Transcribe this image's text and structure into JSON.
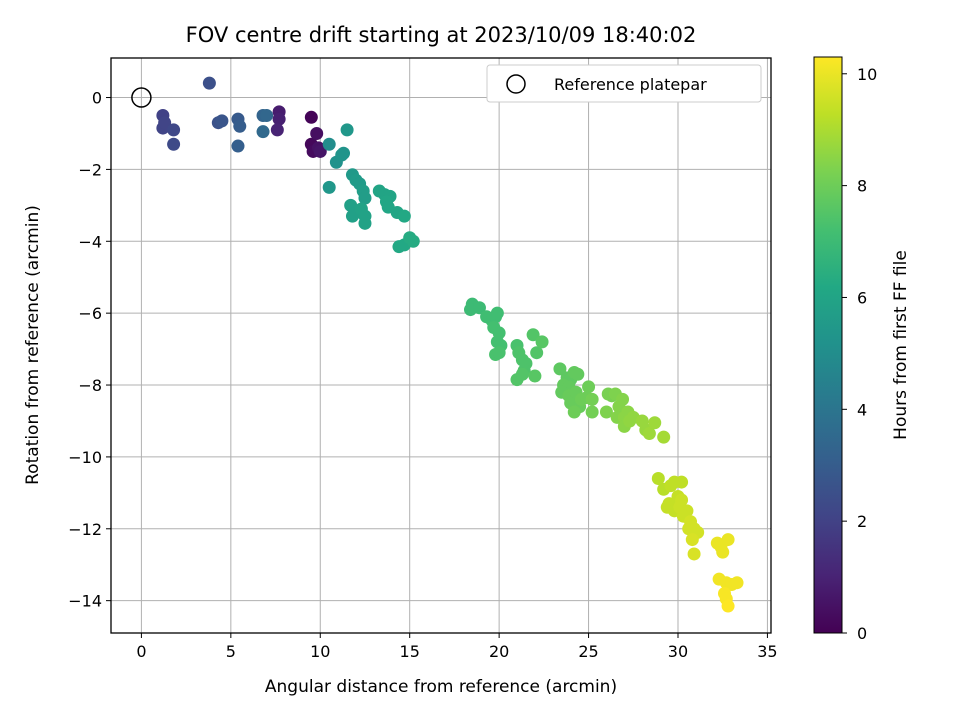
{
  "chart_data": {
    "type": "scatter",
    "title": "FOV centre drift starting at 2023/10/09 18:40:02",
    "xlabel": "Angular distance from reference (arcmin)",
    "ylabel": "Rotation from reference (arcmin)",
    "xlim": [
      -1.7,
      35.2
    ],
    "ylim": [
      -14.9,
      1.1
    ],
    "xticks": [
      0,
      5,
      10,
      15,
      20,
      25,
      30,
      35
    ],
    "yticks": [
      0,
      -2,
      -4,
      -6,
      -8,
      -10,
      -12,
      -14
    ],
    "grid": true,
    "legend": {
      "position": "top-right",
      "entries": [
        "Reference platepar"
      ]
    },
    "reference_point": {
      "x": 0,
      "y": 0,
      "label": "Reference platepar"
    },
    "colorbar": {
      "label": "Hours from first FF file",
      "colormap": "viridis",
      "range": [
        0,
        10.3
      ],
      "ticks": [
        0,
        2,
        4,
        6,
        8,
        10
      ]
    },
    "series": [
      {
        "points": [
          [
            9.5,
            -0.55,
            0.1
          ],
          [
            9.5,
            -1.3,
            0.2
          ],
          [
            9.6,
            -1.5,
            0.3
          ],
          [
            9.8,
            -1.0,
            0.4
          ],
          [
            9.9,
            -1.4,
            0.5
          ],
          [
            10.0,
            -1.5,
            0.6
          ],
          [
            7.7,
            -0.4,
            0.8
          ],
          [
            7.7,
            -0.6,
            0.9
          ],
          [
            7.6,
            -0.9,
            1.0
          ],
          [
            1.2,
            -0.5,
            2.0
          ],
          [
            1.2,
            -0.85,
            2.1
          ],
          [
            1.3,
            -0.7,
            2.1
          ],
          [
            1.8,
            -0.9,
            2.2
          ],
          [
            1.8,
            -1.3,
            2.3
          ],
          [
            3.8,
            0.4,
            2.5
          ],
          [
            4.3,
            -0.7,
            2.6
          ],
          [
            4.5,
            -0.65,
            2.7
          ],
          [
            5.4,
            -0.6,
            2.9
          ],
          [
            5.5,
            -0.8,
            3.0
          ],
          [
            5.4,
            -1.35,
            3.1
          ],
          [
            6.8,
            -0.5,
            3.3
          ],
          [
            7.0,
            -0.5,
            3.4
          ],
          [
            6.8,
            -0.95,
            3.5
          ],
          [
            10.5,
            -1.3,
            5.0
          ],
          [
            10.9,
            -1.8,
            5.2
          ],
          [
            11.3,
            -1.55,
            5.3
          ],
          [
            11.2,
            -1.6,
            5.3
          ],
          [
            11.5,
            -0.9,
            5.4
          ],
          [
            10.5,
            -2.5,
            5.4
          ],
          [
            11.8,
            -2.15,
            5.5
          ],
          [
            12.0,
            -2.3,
            5.6
          ],
          [
            12.2,
            -2.4,
            5.6
          ],
          [
            12.4,
            -2.6,
            5.7
          ],
          [
            12.5,
            -2.8,
            5.7
          ],
          [
            11.7,
            -3.0,
            5.8
          ],
          [
            11.8,
            -3.3,
            5.8
          ],
          [
            12.0,
            -3.2,
            5.8
          ],
          [
            12.3,
            -3.1,
            5.9
          ],
          [
            12.5,
            -3.3,
            5.9
          ],
          [
            12.5,
            -3.5,
            5.9
          ],
          [
            13.3,
            -2.6,
            6.0
          ],
          [
            13.6,
            -2.7,
            6.0
          ],
          [
            13.9,
            -2.75,
            6.0
          ],
          [
            13.7,
            -2.9,
            6.1
          ],
          [
            13.8,
            -3.05,
            6.1
          ],
          [
            14.3,
            -3.2,
            6.1
          ],
          [
            14.7,
            -3.3,
            6.2
          ],
          [
            14.4,
            -4.15,
            6.2
          ],
          [
            14.7,
            -4.1,
            6.2
          ],
          [
            15.0,
            -3.9,
            6.3
          ],
          [
            15.2,
            -4.0,
            6.3
          ],
          [
            18.5,
            -5.75,
            7.0
          ],
          [
            18.4,
            -5.9,
            7.0
          ],
          [
            18.9,
            -5.85,
            7.0
          ],
          [
            19.3,
            -6.1,
            7.1
          ],
          [
            19.6,
            -6.2,
            7.1
          ],
          [
            19.8,
            -6.1,
            7.1
          ],
          [
            19.9,
            -6.0,
            7.1
          ],
          [
            19.7,
            -6.4,
            7.2
          ],
          [
            20.0,
            -6.55,
            7.2
          ],
          [
            19.9,
            -6.8,
            7.2
          ],
          [
            20.1,
            -6.9,
            7.2
          ],
          [
            19.8,
            -7.15,
            7.3
          ],
          [
            20.0,
            -7.1,
            7.3
          ],
          [
            21.0,
            -6.9,
            7.3
          ],
          [
            21.1,
            -7.1,
            7.4
          ],
          [
            21.3,
            -7.3,
            7.4
          ],
          [
            21.5,
            -7.4,
            7.4
          ],
          [
            21.4,
            -7.6,
            7.4
          ],
          [
            21.0,
            -7.85,
            7.5
          ],
          [
            21.3,
            -7.7,
            7.5
          ],
          [
            21.9,
            -6.6,
            7.5
          ],
          [
            22.1,
            -7.1,
            7.5
          ],
          [
            22.4,
            -6.8,
            7.6
          ],
          [
            22.0,
            -7.75,
            7.6
          ],
          [
            23.4,
            -7.55,
            7.7
          ],
          [
            23.8,
            -7.8,
            7.7
          ],
          [
            24.0,
            -7.85,
            7.7
          ],
          [
            23.6,
            -8.0,
            7.8
          ],
          [
            23.9,
            -8.05,
            7.8
          ],
          [
            24.2,
            -7.65,
            7.8
          ],
          [
            24.4,
            -7.7,
            7.8
          ],
          [
            23.5,
            -8.2,
            7.8
          ],
          [
            23.9,
            -8.3,
            7.9
          ],
          [
            24.0,
            -8.5,
            7.9
          ],
          [
            24.3,
            -8.2,
            7.9
          ],
          [
            24.5,
            -8.6,
            7.9
          ],
          [
            24.2,
            -8.75,
            8.0
          ],
          [
            24.6,
            -8.4,
            8.0
          ],
          [
            24.9,
            -8.35,
            8.0
          ],
          [
            25.0,
            -8.05,
            8.0
          ],
          [
            25.2,
            -8.4,
            8.1
          ],
          [
            25.2,
            -8.75,
            8.1
          ],
          [
            26.1,
            -8.25,
            8.2
          ],
          [
            26.3,
            -8.3,
            8.2
          ],
          [
            26.0,
            -8.75,
            8.3
          ],
          [
            26.5,
            -8.25,
            8.3
          ],
          [
            26.7,
            -8.6,
            8.4
          ],
          [
            26.9,
            -8.4,
            8.4
          ],
          [
            26.6,
            -8.9,
            8.4
          ],
          [
            27.0,
            -8.9,
            8.5
          ],
          [
            27.2,
            -8.75,
            8.5
          ],
          [
            27.0,
            -9.15,
            8.5
          ],
          [
            27.5,
            -8.9,
            8.6
          ],
          [
            27.3,
            -9.0,
            8.6
          ],
          [
            28.0,
            -9.0,
            8.7
          ],
          [
            28.2,
            -9.25,
            8.7
          ],
          [
            28.4,
            -9.35,
            8.8
          ],
          [
            28.7,
            -9.05,
            8.8
          ],
          [
            29.2,
            -9.45,
            8.9
          ],
          [
            28.9,
            -10.6,
            9.2
          ],
          [
            29.2,
            -10.9,
            9.2
          ],
          [
            29.6,
            -10.8,
            9.3
          ],
          [
            29.8,
            -10.7,
            9.3
          ],
          [
            30.2,
            -10.7,
            9.3
          ],
          [
            29.5,
            -11.3,
            9.4
          ],
          [
            29.4,
            -11.4,
            9.4
          ],
          [
            29.8,
            -11.5,
            9.4
          ],
          [
            30.0,
            -11.1,
            9.4
          ],
          [
            30.2,
            -11.2,
            9.5
          ],
          [
            30.1,
            -11.4,
            9.5
          ],
          [
            30.5,
            -11.5,
            9.5
          ],
          [
            30.3,
            -11.65,
            9.5
          ],
          [
            30.7,
            -11.8,
            9.6
          ],
          [
            30.6,
            -12.0,
            9.6
          ],
          [
            30.9,
            -12.0,
            9.6
          ],
          [
            31.1,
            -12.1,
            9.6
          ],
          [
            30.8,
            -12.3,
            9.7
          ],
          [
            30.9,
            -12.7,
            9.7
          ],
          [
            32.2,
            -12.4,
            10.0
          ],
          [
            32.4,
            -12.5,
            10.0
          ],
          [
            32.5,
            -12.65,
            10.0
          ],
          [
            32.8,
            -12.3,
            10.0
          ],
          [
            32.3,
            -13.4,
            10.1
          ],
          [
            32.7,
            -13.5,
            10.1
          ],
          [
            33.0,
            -13.55,
            10.1
          ],
          [
            33.3,
            -13.5,
            10.1
          ],
          [
            32.6,
            -13.8,
            10.2
          ],
          [
            32.7,
            -13.95,
            10.2
          ],
          [
            32.8,
            -14.15,
            10.3
          ]
        ]
      }
    ]
  }
}
